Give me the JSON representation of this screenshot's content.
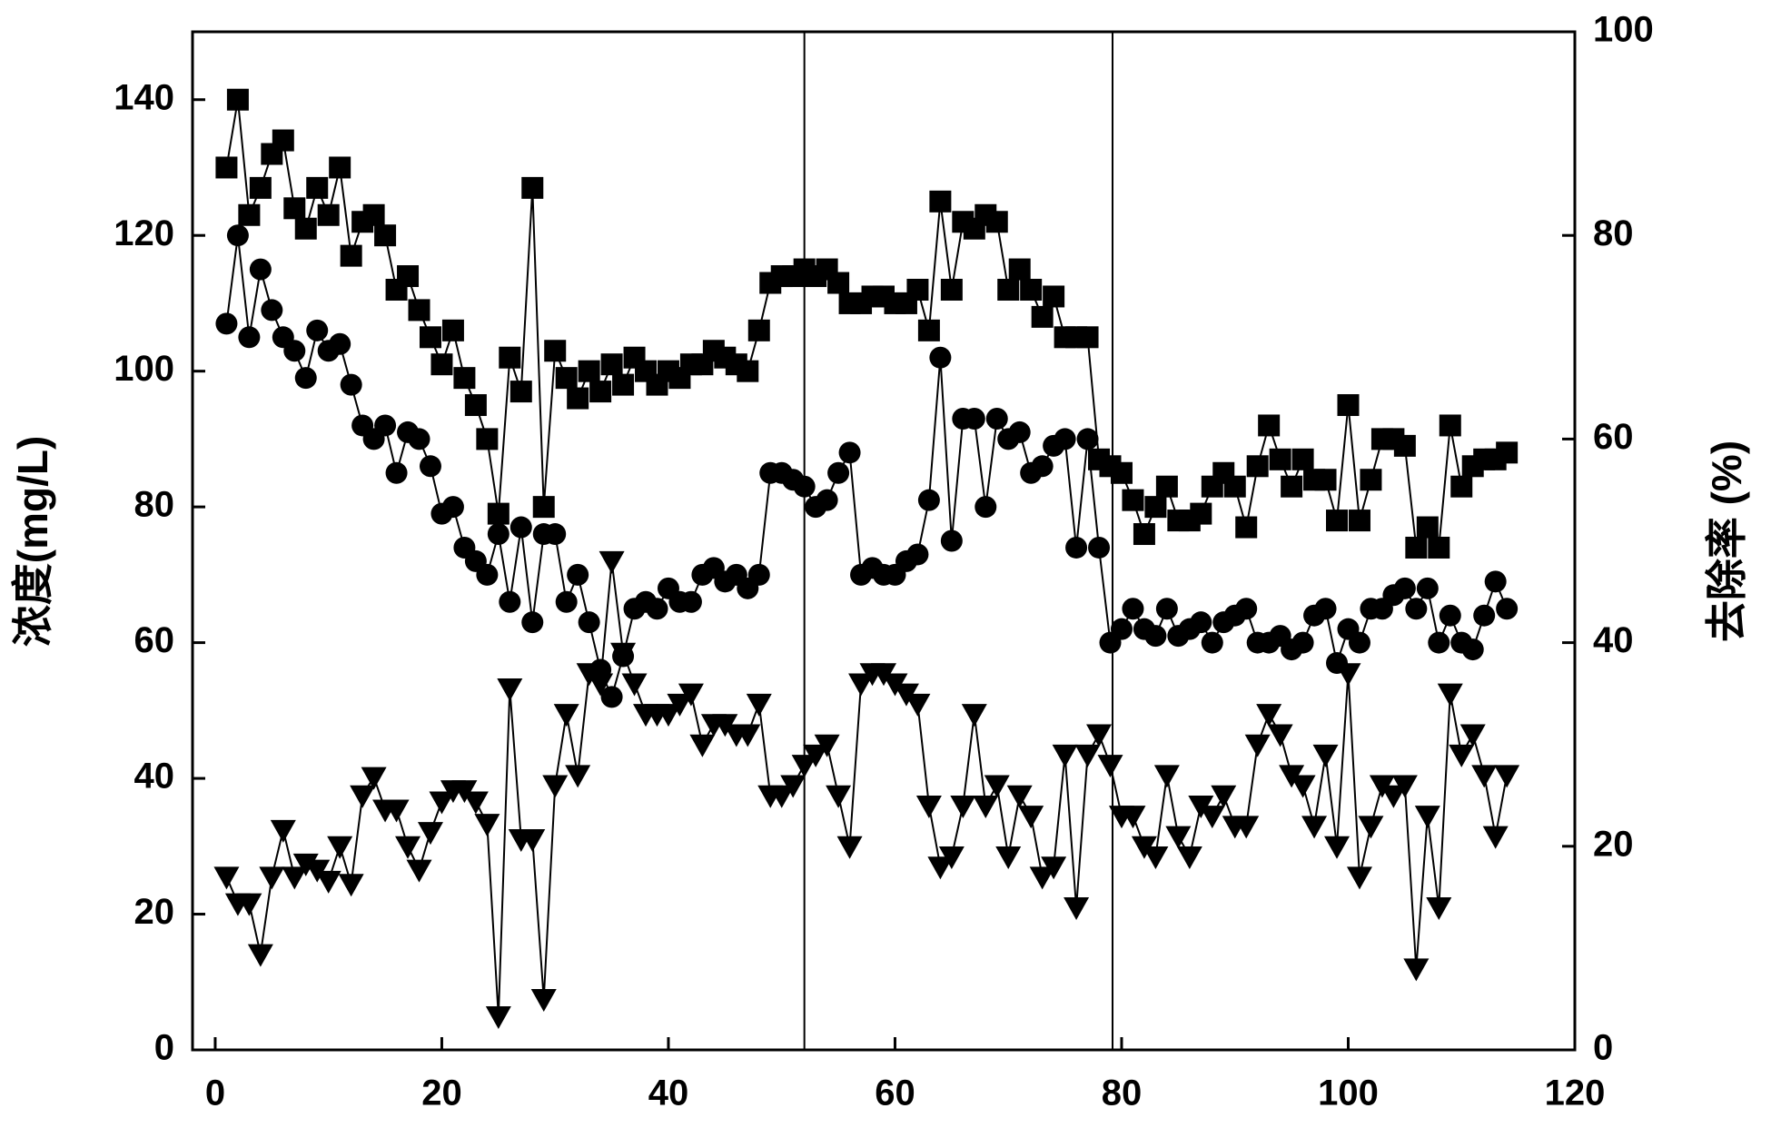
{
  "chart_data": {
    "type": "line",
    "y_label": "浓度(mg/L)",
    "y2_label": "去除率 (%)",
    "xlim": [
      -2,
      120
    ],
    "xticks": [
      0,
      20,
      40,
      60,
      80,
      100,
      120
    ],
    "ylim": [
      0,
      150
    ],
    "yticks": [
      0,
      20,
      40,
      60,
      80,
      100,
      120,
      140
    ],
    "y2lim": [
      0,
      100
    ],
    "y2ticks": [
      0,
      20,
      40,
      60,
      80,
      100
    ],
    "vlines": [
      52,
      79.2
    ],
    "x": [
      1,
      2,
      3,
      4,
      5,
      6,
      7,
      8,
      9,
      10,
      11,
      12,
      13,
      14,
      15,
      16,
      17,
      18,
      19,
      20,
      21,
      22,
      23,
      24,
      25,
      26,
      27,
      28,
      29,
      30,
      31,
      32,
      33,
      34,
      35,
      36,
      37,
      38,
      39,
      40,
      41,
      42,
      43,
      44,
      45,
      46,
      47,
      48,
      49,
      50,
      51,
      52,
      53,
      54,
      55,
      56,
      57,
      58,
      59,
      60,
      61,
      62,
      63,
      64,
      65,
      66,
      67,
      68,
      69,
      70,
      71,
      72,
      73,
      74,
      75,
      76,
      77,
      78,
      79,
      80,
      81,
      82,
      83,
      84,
      85,
      86,
      87,
      88,
      89,
      90,
      91,
      92,
      93,
      94,
      95,
      96,
      97,
      98,
      99,
      100,
      101,
      102,
      103,
      104,
      105,
      106,
      107,
      108,
      109,
      110,
      111,
      112,
      113,
      114
    ],
    "series": [
      {
        "marker": "square",
        "color": "#000000",
        "values": [
          130,
          140,
          123,
          127,
          132,
          134,
          124,
          121,
          127,
          123,
          130,
          117,
          122,
          123,
          120,
          112,
          114,
          109,
          105,
          101,
          106,
          99,
          95,
          90,
          79,
          102,
          97,
          127,
          80,
          103,
          99,
          96,
          100,
          97,
          101,
          98,
          102,
          100,
          98,
          100,
          99,
          101,
          101,
          103,
          102,
          101,
          100,
          106,
          113,
          114,
          114,
          115,
          114,
          115,
          113,
          110,
          110,
          111,
          111,
          110,
          110,
          112,
          106,
          125,
          112,
          122,
          121,
          123,
          122,
          112,
          115,
          112,
          108,
          111,
          105,
          105,
          105,
          87,
          86,
          85,
          81,
          76,
          80,
          83,
          78,
          78,
          79,
          83,
          85,
          83,
          77,
          86,
          92,
          87,
          83,
          87,
          84,
          84,
          78,
          95,
          78,
          84,
          90,
          90,
          89,
          74,
          77,
          74,
          92,
          83,
          86,
          87,
          87,
          88
        ]
      },
      {
        "marker": "circle",
        "color": "#000000",
        "values": [
          107,
          120,
          105,
          115,
          109,
          105,
          103,
          99,
          106,
          103,
          104,
          98,
          92,
          90,
          92,
          85,
          91,
          90,
          86,
          79,
          80,
          74,
          72,
          70,
          76,
          66,
          77,
          63,
          76,
          76,
          66,
          70,
          63,
          56,
          52,
          58,
          65,
          66,
          65,
          68,
          66,
          66,
          70,
          71,
          69,
          70,
          68,
          70,
          85,
          85,
          84,
          83,
          80,
          81,
          85,
          88,
          70,
          71,
          70,
          70,
          72,
          73,
          81,
          102,
          75,
          93,
          93,
          80,
          93,
          90,
          91,
          85,
          86,
          89,
          90,
          74,
          90,
          74,
          60,
          62,
          65,
          62,
          61,
          65,
          61,
          62,
          63,
          60,
          63,
          64,
          65,
          60,
          60,
          61,
          59,
          60,
          64,
          65,
          57,
          62,
          60,
          65,
          65,
          67,
          68,
          65,
          68,
          60,
          64,
          60,
          59,
          64,
          69,
          65
        ]
      },
      {
        "marker": "triangle",
        "color": "#000000",
        "axis": "y2",
        "values": [
          17,
          14.4,
          14.4,
          9.4,
          17,
          21.6,
          17,
          18.3,
          17.7,
          16.6,
          20,
          16.3,
          25,
          26.8,
          23.6,
          23.6,
          20,
          17.7,
          21.4,
          24.4,
          25.5,
          25.5,
          24.4,
          22.2,
          3.3,
          35.5,
          20.7,
          20.7,
          5,
          26,
          33,
          27,
          37,
          36,
          48,
          39,
          36,
          33,
          33,
          33,
          34,
          35,
          30,
          32,
          32,
          31,
          31,
          34,
          25,
          25,
          26,
          28,
          29,
          30,
          25,
          20,
          36,
          37,
          37,
          36,
          35,
          34,
          24,
          18,
          19,
          24,
          33,
          24,
          26,
          19,
          25,
          23,
          17,
          18,
          29,
          14,
          29,
          31,
          28,
          23,
          23,
          20,
          19,
          27,
          21,
          19,
          24,
          23,
          25,
          22,
          22,
          30,
          33,
          31,
          27,
          26,
          22,
          29,
          20,
          37,
          17,
          22,
          26,
          25,
          26,
          8,
          23,
          14,
          35,
          29,
          31,
          27,
          21,
          27
        ]
      }
    ]
  }
}
